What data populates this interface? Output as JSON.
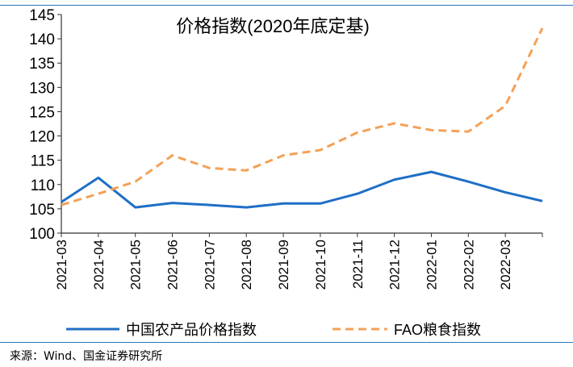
{
  "chart_data": {
    "type": "line",
    "title": "价格指数(2020年底定基)",
    "categories": [
      "2021-03",
      "2021-04",
      "2021-05",
      "2021-06",
      "2021-07",
      "2021-08",
      "2021-09",
      "2021-10",
      "2021-11",
      "2021-12",
      "2022-01",
      "2022-02",
      "2022-03",
      ""
    ],
    "series": [
      {
        "name": "中国农产品价格指数",
        "color": "#1f6fc6",
        "dash": "solid",
        "values": [
          106.4,
          111.4,
          105.3,
          106.2,
          105.8,
          105.3,
          106.1,
          106.1,
          108.1,
          111.0,
          112.6,
          110.6,
          108.4,
          106.6
        ]
      },
      {
        "name": "FAO粮食指数",
        "color": "#f4a157",
        "dash": "dashed",
        "values": [
          105.8,
          108.1,
          110.6,
          116.0,
          113.4,
          112.9,
          116.0,
          117.1,
          120.7,
          122.6,
          121.2,
          120.9,
          126.2,
          142.2
        ]
      }
    ],
    "yticks": [
      100,
      105,
      110,
      115,
      120,
      125,
      130,
      135,
      140,
      145
    ],
    "ylim": [
      100,
      145
    ],
    "xlabel": "",
    "ylabel": ""
  },
  "source": "来源：Wind、国金证券研究所"
}
